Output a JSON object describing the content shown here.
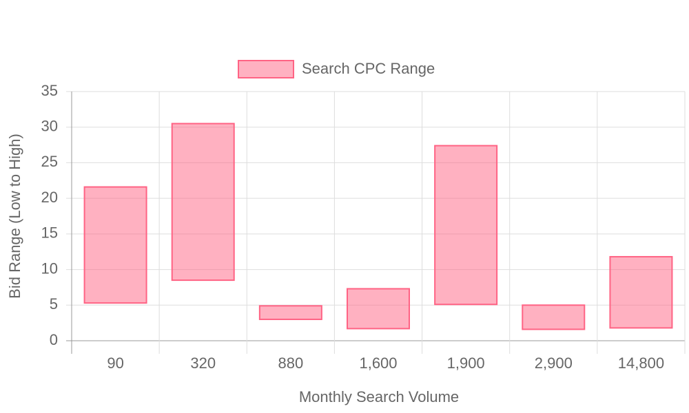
{
  "chart_data": {
    "type": "floating-bar",
    "x_label": "Monthly Search Volume",
    "y_label": "Bid Range (Low to High)",
    "categories": [
      "90",
      "320",
      "880",
      "1,600",
      "1,900",
      "2,900",
      "14,800"
    ],
    "series": [
      {
        "name": "Search CPC Range",
        "color": "#ff6384",
        "low": [
          5.3,
          8.5,
          3.0,
          1.7,
          5.1,
          1.6,
          1.8
        ],
        "high": [
          21.6,
          30.5,
          4.9,
          7.3,
          27.4,
          5.0,
          11.8
        ]
      }
    ],
    "ylim": [
      0,
      35
    ],
    "yticks": [
      0,
      5,
      10,
      15,
      20,
      25,
      30,
      35
    ],
    "grid": true,
    "legend": "top"
  }
}
